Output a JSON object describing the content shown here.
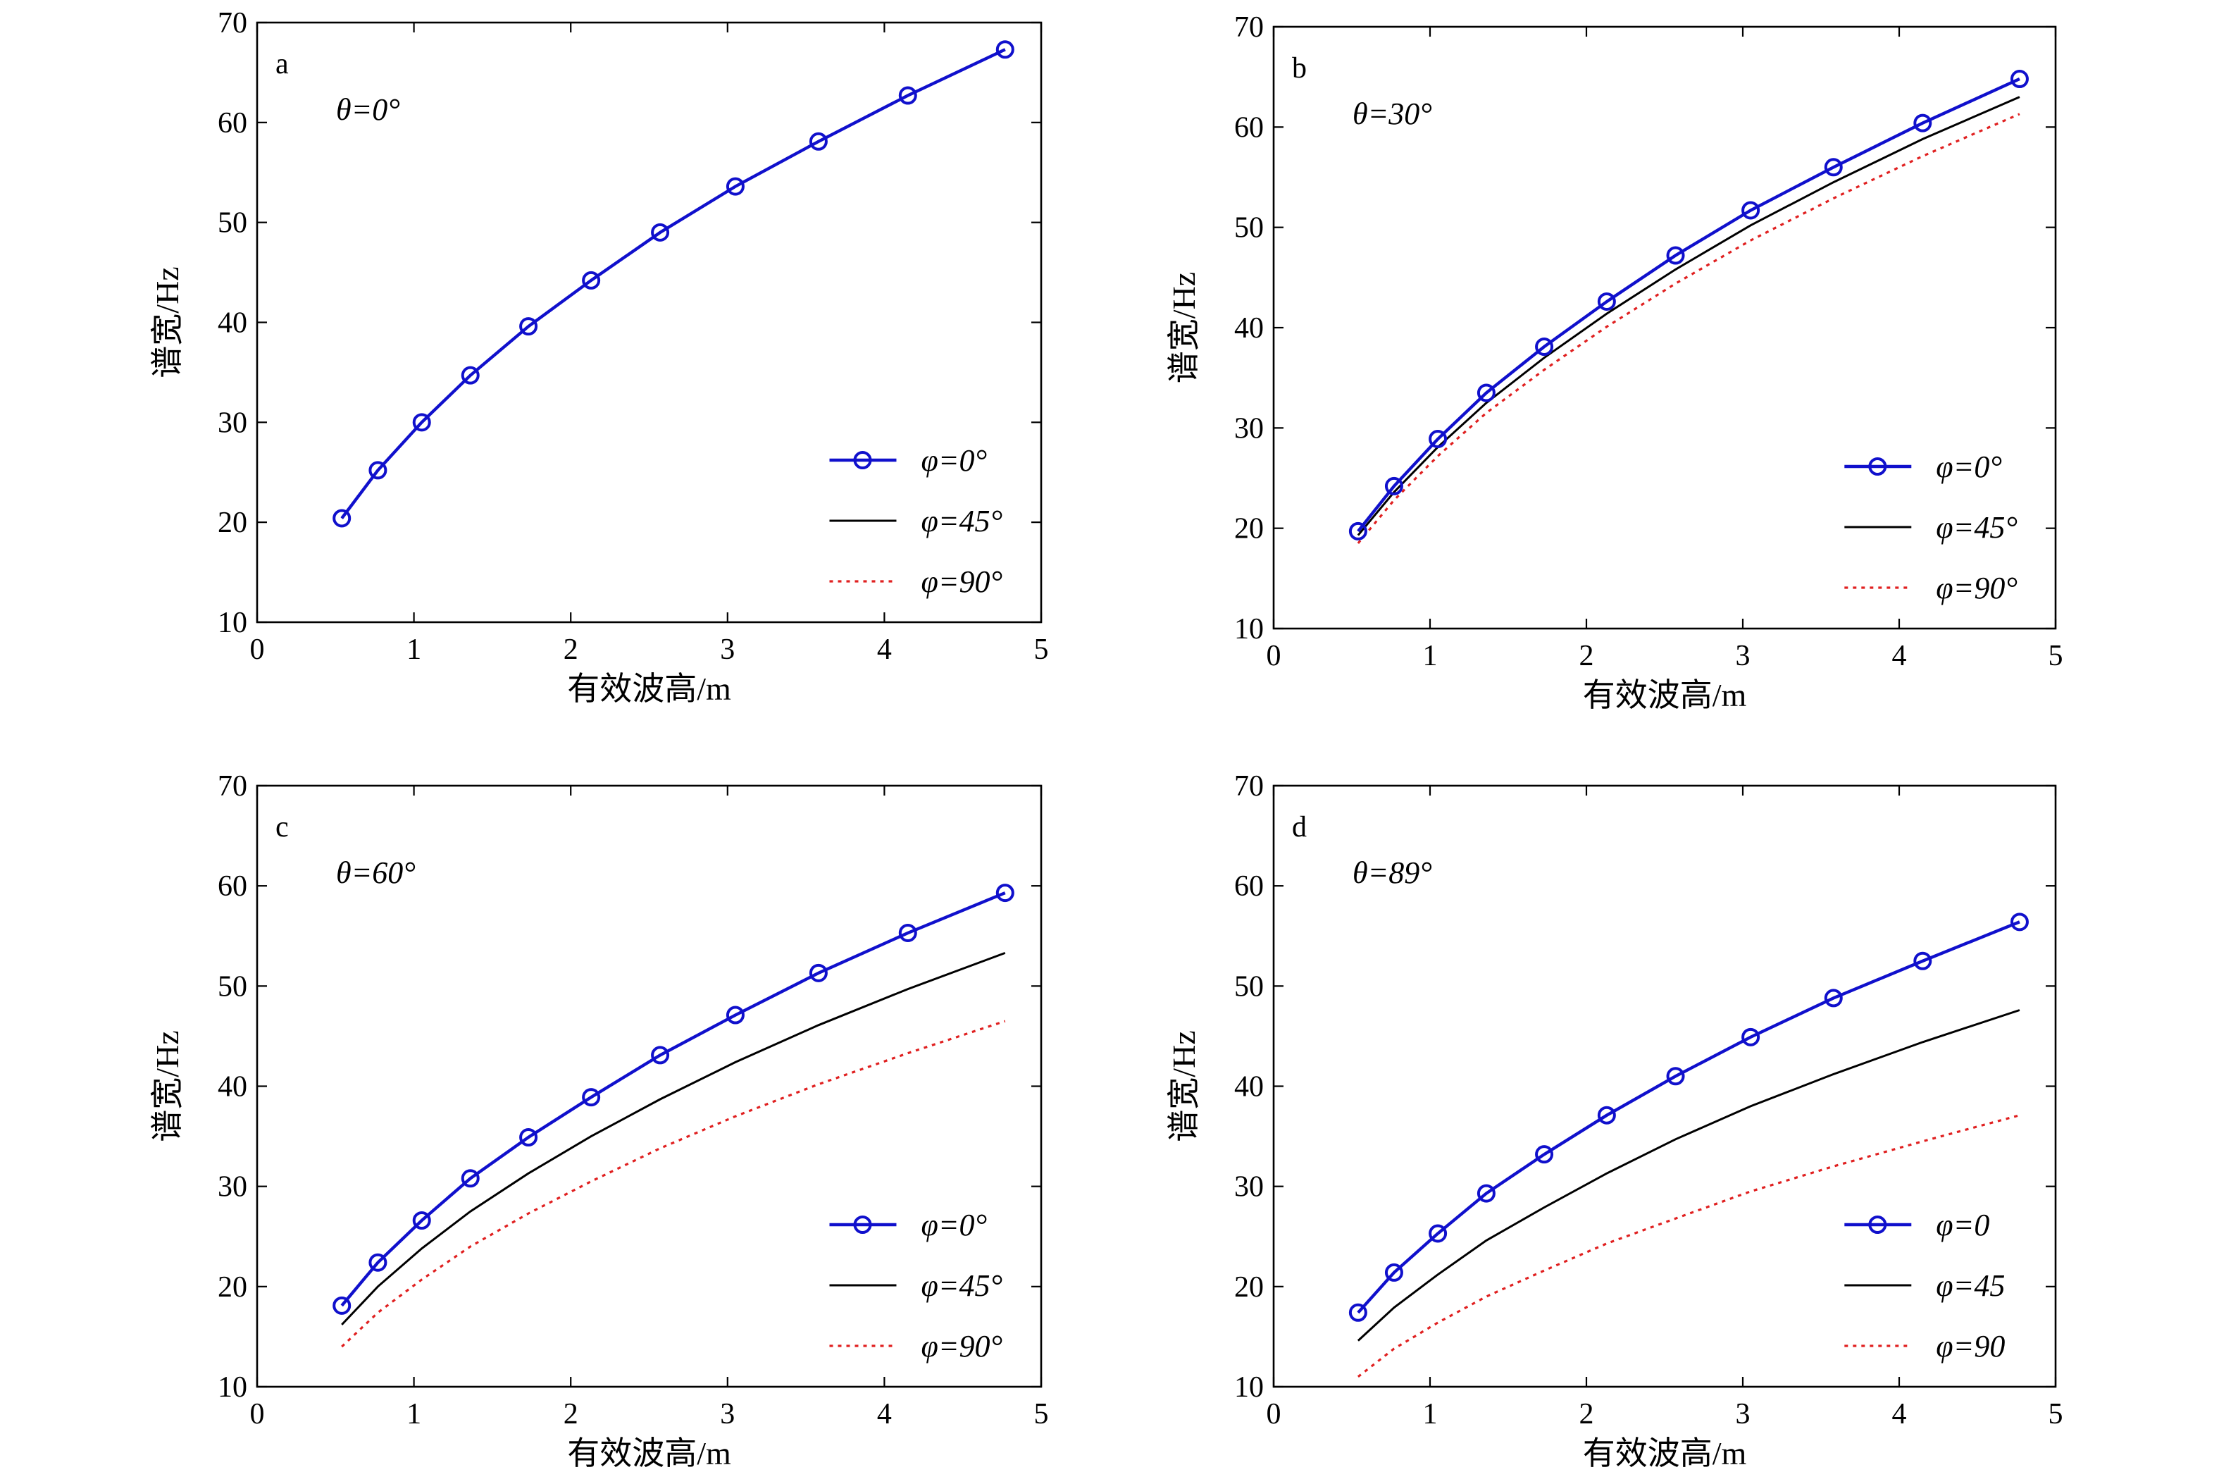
{
  "chart_data": [
    {
      "type": "line",
      "panel_label": "a",
      "annotation": "θ=0°",
      "xlabel": "有效波高/m",
      "ylabel": "谱宽/Hz",
      "xlim": [
        0,
        5
      ],
      "ylim": [
        10,
        70
      ],
      "xticks": [
        0,
        1,
        2,
        3,
        4,
        5
      ],
      "yticks": [
        10,
        20,
        30,
        40,
        50,
        60,
        70
      ],
      "legend_position": "lower-right",
      "x": [
        0.54,
        0.77,
        1.05,
        1.36,
        1.73,
        2.13,
        2.57,
        3.05,
        3.58,
        4.15,
        4.77
      ],
      "series": [
        {
          "name": "φ=0°",
          "style": "solid-marker",
          "color": "#1010cc",
          "values": [
            20.4,
            25.2,
            30.0,
            34.7,
            39.6,
            44.2,
            49.0,
            53.6,
            58.1,
            62.7,
            67.3
          ]
        },
        {
          "name": "φ=45°",
          "style": "solid",
          "color": "#000000",
          "values": [
            20.4,
            25.2,
            30.0,
            34.7,
            39.6,
            44.2,
            49.0,
            53.6,
            58.1,
            62.7,
            67.3
          ]
        },
        {
          "name": "φ=90°",
          "style": "dotted",
          "color": "#e02020",
          "values": [
            20.4,
            25.2,
            30.0,
            34.7,
            39.6,
            44.2,
            49.0,
            53.6,
            58.1,
            62.7,
            67.3
          ]
        }
      ]
    },
    {
      "type": "line",
      "panel_label": "b",
      "annotation": "θ=30°",
      "xlabel": "有效波高/m",
      "ylabel": "谱宽/Hz",
      "xlim": [
        0,
        5
      ],
      "ylim": [
        10,
        70
      ],
      "xticks": [
        0,
        1,
        2,
        3,
        4,
        5
      ],
      "yticks": [
        10,
        20,
        30,
        40,
        50,
        60,
        70
      ],
      "legend_position": "lower-right",
      "x": [
        0.54,
        0.77,
        1.05,
        1.36,
        1.73,
        2.13,
        2.57,
        3.05,
        3.58,
        4.15,
        4.77
      ],
      "series": [
        {
          "name": "φ=0°",
          "style": "solid-marker",
          "color": "#1010cc",
          "values": [
            19.7,
            24.2,
            28.9,
            33.5,
            38.1,
            42.6,
            47.2,
            51.7,
            56.0,
            60.4,
            64.8
          ]
        },
        {
          "name": "φ=45°",
          "style": "solid",
          "color": "#000000",
          "values": [
            19.3,
            23.6,
            28.1,
            32.5,
            37.0,
            41.4,
            45.8,
            50.2,
            54.5,
            58.8,
            63.0
          ]
        },
        {
          "name": "φ=90°",
          "style": "dotted",
          "color": "#e02020",
          "values": [
            18.5,
            22.8,
            27.2,
            31.5,
            35.8,
            40.1,
            44.4,
            48.7,
            52.9,
            57.1,
            61.3
          ]
        }
      ]
    },
    {
      "type": "line",
      "panel_label": "c",
      "annotation": "θ=60°",
      "xlabel": "有效波高/m",
      "ylabel": "谱宽/Hz",
      "xlim": [
        0,
        5
      ],
      "ylim": [
        10,
        70
      ],
      "xticks": [
        0,
        1,
        2,
        3,
        4,
        5
      ],
      "yticks": [
        10,
        20,
        30,
        40,
        50,
        60,
        70
      ],
      "legend_position": "lower-right",
      "x": [
        0.54,
        0.77,
        1.05,
        1.36,
        1.73,
        2.13,
        2.57,
        3.05,
        3.58,
        4.15,
        4.77
      ],
      "series": [
        {
          "name": "φ=0°",
          "style": "solid-marker",
          "color": "#1010cc",
          "values": [
            18.1,
            22.4,
            26.6,
            30.8,
            34.9,
            38.9,
            43.1,
            47.1,
            51.3,
            55.3,
            59.3
          ]
        },
        {
          "name": "φ=45°",
          "style": "solid",
          "color": "#000000",
          "values": [
            16.2,
            20.0,
            23.8,
            27.5,
            31.3,
            35.0,
            38.7,
            42.4,
            46.1,
            49.7,
            53.3
          ]
        },
        {
          "name": "φ=90°",
          "style": "dotted",
          "color": "#e02020",
          "values": [
            14.0,
            17.4,
            20.7,
            24.0,
            27.3,
            30.5,
            33.8,
            37.0,
            40.2,
            43.3,
            46.5
          ]
        }
      ]
    },
    {
      "type": "line",
      "panel_label": "d",
      "annotation": "θ=89°",
      "xlabel": "有效波高/m",
      "ylabel": "谱宽/Hz",
      "xlim": [
        0,
        5
      ],
      "ylim": [
        10,
        70
      ],
      "xticks": [
        0,
        1,
        2,
        3,
        4,
        5
      ],
      "yticks": [
        10,
        20,
        30,
        40,
        50,
        60,
        70
      ],
      "legend_position": "lower-right",
      "x": [
        0.54,
        0.77,
        1.05,
        1.36,
        1.73,
        2.13,
        2.57,
        3.05,
        3.58,
        4.15,
        4.77
      ],
      "series": [
        {
          "name": "φ=0",
          "style": "solid-marker",
          "color": "#1010cc",
          "values": [
            17.4,
            21.4,
            25.3,
            29.3,
            33.2,
            37.1,
            41.0,
            44.9,
            48.8,
            52.5,
            56.4
          ]
        },
        {
          "name": "φ=45",
          "style": "solid",
          "color": "#000000",
          "values": [
            14.6,
            17.9,
            21.2,
            24.6,
            27.9,
            31.3,
            34.7,
            38.0,
            41.2,
            44.4,
            47.6
          ]
        },
        {
          "name": "φ=90",
          "style": "dotted",
          "color": "#e02020",
          "values": [
            11.0,
            13.8,
            16.4,
            19.0,
            21.6,
            24.3,
            26.8,
            29.5,
            32.0,
            34.5,
            37.1
          ]
        }
      ]
    }
  ]
}
